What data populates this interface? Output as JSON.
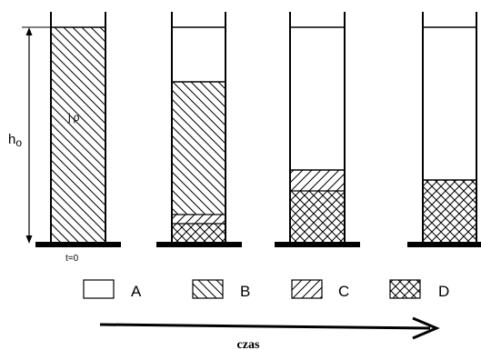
{
  "diagram": {
    "height_label_main": "h",
    "height_label_sub": "o",
    "symbol_j": "j",
    "symbol_rho": "ρ",
    "time_zero_label": "t=0",
    "legend": [
      {
        "key": "A",
        "pattern": "empty"
      },
      {
        "key": "B",
        "pattern": "backslash-hatch"
      },
      {
        "key": "C",
        "pattern": "slash-hatch"
      },
      {
        "key": "D",
        "pattern": "cross-hatch"
      }
    ],
    "arrow_label": "czas",
    "stages": [
      {
        "name": "stage-1",
        "layers": [
          "B"
        ]
      },
      {
        "name": "stage-2",
        "layers": [
          "A",
          "B",
          "C",
          "D"
        ]
      },
      {
        "name": "stage-3",
        "layers": [
          "A",
          "C",
          "D"
        ]
      },
      {
        "name": "stage-4",
        "layers": [
          "A",
          "D"
        ]
      }
    ],
    "colors": {
      "ink": "#000000",
      "background": "#ffffff"
    }
  }
}
